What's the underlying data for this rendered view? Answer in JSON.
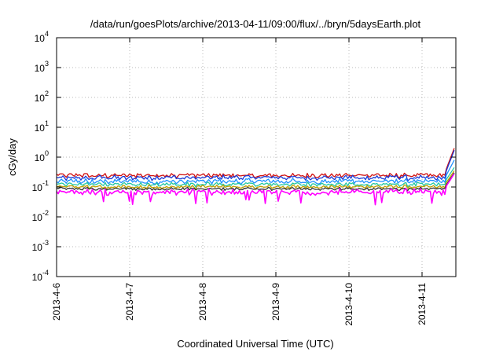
{
  "chart_data": {
    "type": "line",
    "title": "/data/run/goesPlots/archive/2013-04-11/09:00/flux/../bryn/5daysEarth.plot",
    "xlabel": "Coordinated Universal Time (UTC)",
    "ylabel": "cGy/day",
    "yscale": "log",
    "ylim": [
      0.0001,
      10000
    ],
    "xlim": [
      "2013-04-06",
      "2013-04-11 09:00"
    ],
    "grid": true,
    "legend": "none",
    "x_ticks": [
      "2013-4-6",
      "2013-4-7",
      "2013-4-8",
      "2013-4-9",
      "2013-4-10",
      "2013-4-11"
    ],
    "y_ticks": [
      {
        "value": 0.0001,
        "base": "10",
        "exp": "-4"
      },
      {
        "value": 0.001,
        "base": "10",
        "exp": "-3"
      },
      {
        "value": 0.01,
        "base": "10",
        "exp": "-2"
      },
      {
        "value": 0.1,
        "base": "10",
        "exp": "-1"
      },
      {
        "value": 1,
        "base": "10",
        "exp": "0"
      },
      {
        "value": 10,
        "base": "10",
        "exp": "1"
      },
      {
        "value": 100,
        "base": "10",
        "exp": "2"
      },
      {
        "value": 1000,
        "base": "10",
        "exp": "3"
      },
      {
        "value": 10000,
        "base": "10",
        "exp": "4"
      }
    ],
    "series": [
      {
        "color": "#d01010",
        "values_range": [
          0.2,
          0.3
        ],
        "end_value": 2.0
      },
      {
        "color": "#1a3ad8",
        "values_range": [
          0.16,
          0.26
        ],
        "end_value": 1.7
      },
      {
        "color": "#1e90ff",
        "values_range": [
          0.12,
          0.2
        ],
        "end_value": 0.8
      },
      {
        "color": "#20c8a0",
        "values_range": [
          0.1,
          0.15
        ],
        "end_value": 0.45
      },
      {
        "color": "#c0a000",
        "values_range": [
          0.085,
          0.12
        ],
        "end_value": 0.35
      },
      {
        "color": "#333333",
        "values_range": [
          0.075,
          0.1
        ],
        "end_value": 0.3
      },
      {
        "color": "#ff00ff",
        "values_range": [
          0.05,
          0.09
        ],
        "end_value": 0.28
      }
    ]
  }
}
